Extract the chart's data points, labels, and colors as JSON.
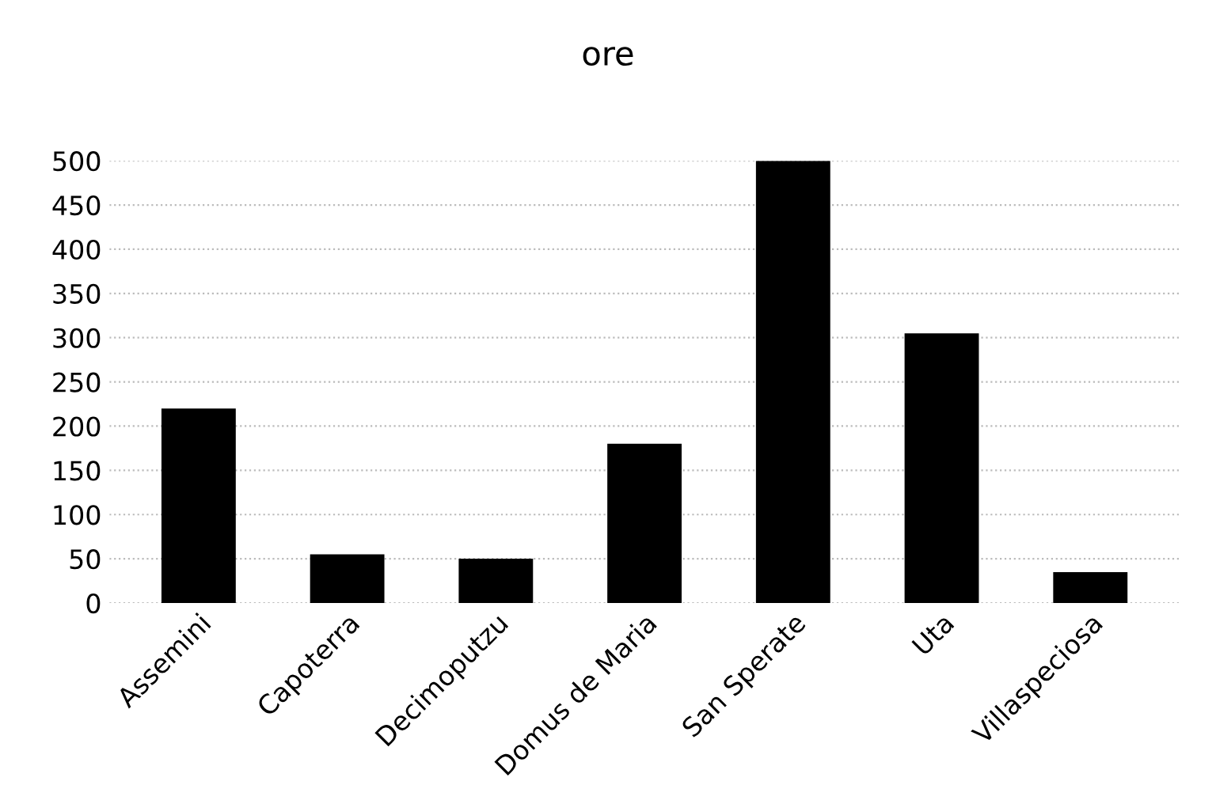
{
  "chart_data": {
    "type": "bar",
    "title": "ore",
    "categories": [
      "Assemini",
      "Capoterra",
      "Decimoputzu",
      "Domus de Maria",
      "San Sperate",
      "Uta",
      "Villaspeciosa"
    ],
    "values": [
      220,
      55,
      50,
      180,
      500,
      305,
      35
    ],
    "color": "#000000",
    "ylim": [
      0,
      500
    ],
    "yticks": [
      0,
      50,
      100,
      150,
      200,
      250,
      300,
      350,
      400,
      450,
      500
    ],
    "grid": "y"
  }
}
